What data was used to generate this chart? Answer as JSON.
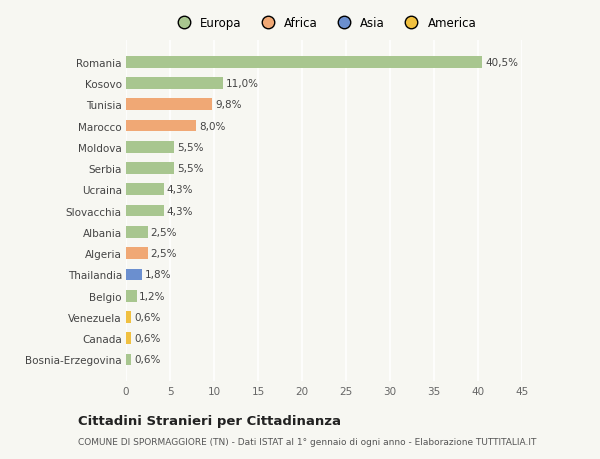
{
  "categories": [
    "Bosnia-Erzegovina",
    "Canada",
    "Venezuela",
    "Belgio",
    "Thailandia",
    "Algeria",
    "Albania",
    "Slovacchia",
    "Ucraina",
    "Serbia",
    "Moldova",
    "Marocco",
    "Tunisia",
    "Kosovo",
    "Romania"
  ],
  "values": [
    0.6,
    0.6,
    0.6,
    1.2,
    1.8,
    2.5,
    2.5,
    4.3,
    4.3,
    5.5,
    5.5,
    8.0,
    9.8,
    11.0,
    40.5
  ],
  "labels": [
    "0,6%",
    "0,6%",
    "0,6%",
    "1,2%",
    "1,8%",
    "2,5%",
    "2,5%",
    "4,3%",
    "4,3%",
    "5,5%",
    "5,5%",
    "8,0%",
    "9,8%",
    "11,0%",
    "40,5%"
  ],
  "continents": [
    "Europa",
    "America",
    "America",
    "Europa",
    "Asia",
    "Africa",
    "Europa",
    "Europa",
    "Europa",
    "Europa",
    "Europa",
    "Africa",
    "Africa",
    "Europa",
    "Europa"
  ],
  "continent_colors": {
    "Europa": "#a8c68f",
    "Africa": "#f0a875",
    "Asia": "#6b8fcf",
    "America": "#f0c040"
  },
  "legend_order": [
    "Europa",
    "Africa",
    "Asia",
    "America"
  ],
  "xlim": [
    0,
    45
  ],
  "xticks": [
    0,
    5,
    10,
    15,
    20,
    25,
    30,
    35,
    40,
    45
  ],
  "title": "Cittadini Stranieri per Cittadinanza",
  "subtitle": "COMUNE DI SPORMAGGIORE (TN) - Dati ISTAT al 1° gennaio di ogni anno - Elaborazione TUTTITALIA.IT",
  "background_color": "#f7f7f2",
  "bar_alpha": 1.0
}
